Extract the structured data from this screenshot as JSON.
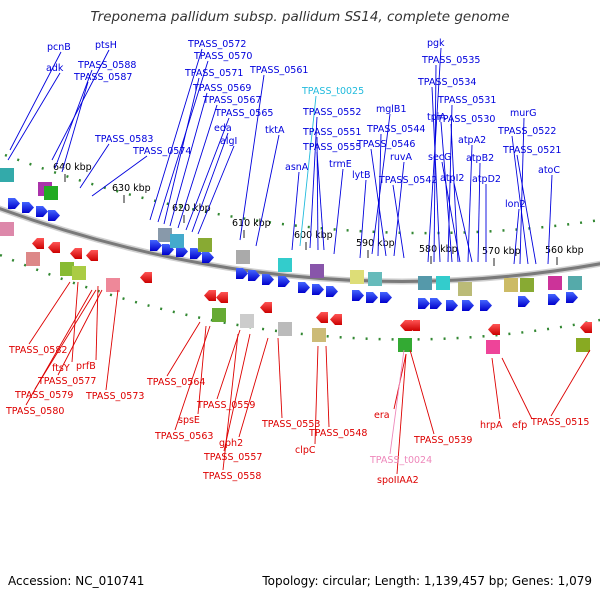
{
  "title": "Treponema pallidum subsp. pallidum SS14, complete genome",
  "footer": {
    "accession": "Accession: NC_010741",
    "summary": "Topology: circular; Length: 1,139,457 bp; Genes: 1,079"
  },
  "colors": {
    "forward": "#0000dd",
    "reverse": "#dd0000",
    "trna": "#22bbdd",
    "misc_rna": "#ee88bb",
    "backbone": "#777777",
    "tick": "#228822"
  },
  "scale_labels": [
    "640 kbp",
    "630 kbp",
    "620 kbp",
    "610 kbp",
    "600 kbp",
    "590 kbp",
    "580 kbp",
    "570 kbp",
    "560 kbp"
  ],
  "forward_labels": [
    "pcnB",
    "adk",
    "ptsH",
    "TPASS_0588",
    "TPASS_0587",
    "TPASS_0583",
    "TPASS_0574",
    "TPASS_0572",
    "TPASS_0570",
    "TPASS_0571",
    "TPASS_0569",
    "TPASS_0567",
    "TPASS_0565",
    "eda",
    "algI",
    "TPASS_0561",
    "tktA",
    "TPASS_t0025",
    "TPASS_0552",
    "TPASS_0551",
    "TPASS_0555",
    "asnA",
    "trmE",
    "mglB1",
    "TPASS_0544",
    "TPASS_0546",
    "ruvA",
    "lytB",
    "TPASS_0542",
    "pgk",
    "TPASS_0535",
    "TPASS_0534",
    "TPASS_0531",
    "tpiA",
    "TPASS_0530",
    "secG",
    "atpA2",
    "atpI2",
    "atpB2",
    "atpD2",
    "murG",
    "TPASS_0522",
    "TPASS_0521",
    "lon2",
    "atoC"
  ],
  "reverse_labels": [
    "TPASS_0582",
    "ftsY",
    "prfB",
    "TPASS_0577",
    "TPASS_0579",
    "TPASS_0580",
    "TPASS_0573",
    "TPASS_0564",
    "spsE",
    "TPASS_0563",
    "TPASS_0559",
    "gph2",
    "TPASS_0557",
    "TPASS_0558",
    "TPASS_0553",
    "clpC",
    "TPASS_0548",
    "era",
    "TPASS_t0024",
    "spoIIAA2",
    "TPASS_0539",
    "hrpA",
    "efp",
    "TPASS_0515"
  ]
}
